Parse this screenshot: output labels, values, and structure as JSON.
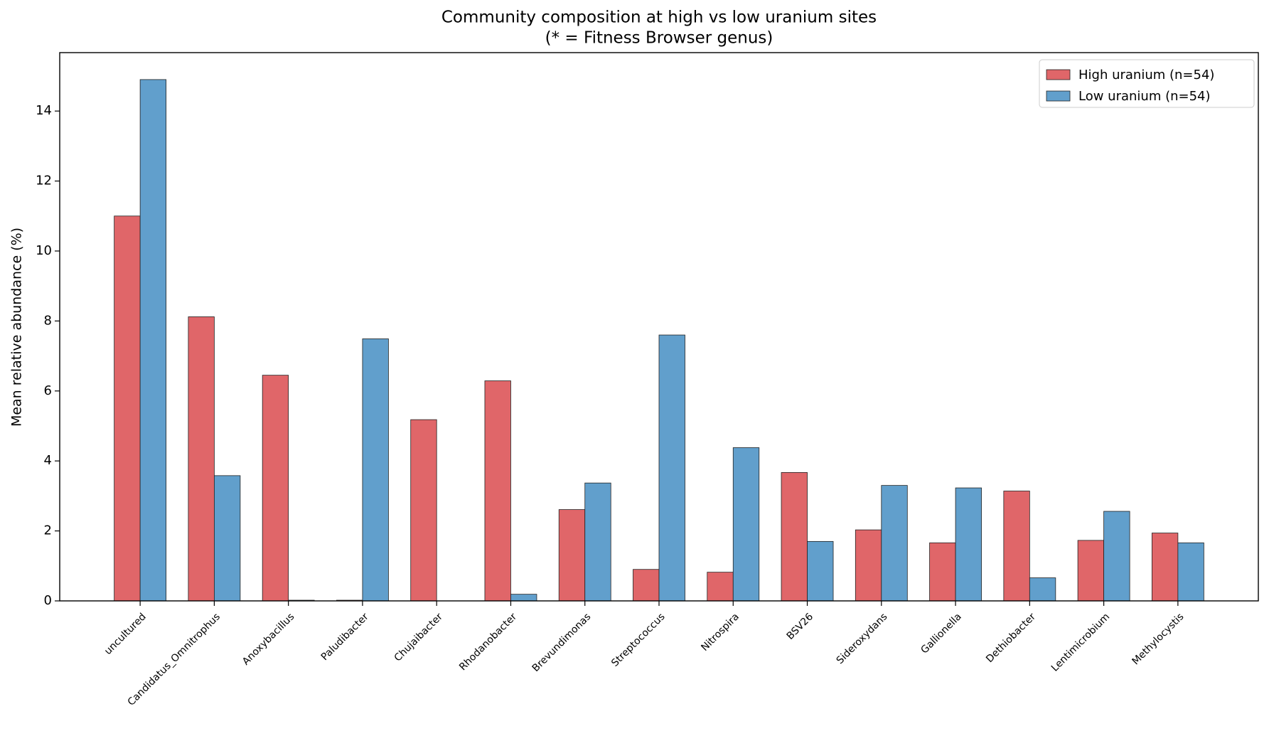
{
  "chart_data": {
    "type": "bar",
    "title": "Community composition at high vs low uranium sites",
    "subtitle": "(* = Fitness Browser genus)",
    "y_label": "Mean relative abundance (%)",
    "categories": [
      "uncultured",
      "Candidatus_Omnitrophus",
      "Anoxybacillus",
      "Paludibacter",
      "Chujaibacter",
      "Rhodanobacter",
      "Brevundimonas",
      "Streptococcus",
      "Nitrospira",
      "BSV26",
      "Sideroxydans",
      "Gallionella",
      "Dethiobacter",
      "Lentimicrobium",
      "Methylocystis"
    ],
    "series": [
      {
        "name": "High uranium (n=54)",
        "color": "#e06669",
        "values": [
          11.0,
          8.12,
          6.45,
          0.02,
          5.18,
          6.29,
          2.61,
          0.9,
          0.82,
          3.67,
          2.03,
          1.66,
          3.14,
          1.73,
          1.94
        ]
      },
      {
        "name": "Low uranium (n=54)",
        "color": "#619fcc",
        "values": [
          14.9,
          3.58,
          0.02,
          7.49,
          0.0,
          0.19,
          3.37,
          7.6,
          4.38,
          1.7,
          3.3,
          3.23,
          0.66,
          2.56,
          1.66
        ]
      }
    ],
    "ylim": [
      0,
      15.67
    ],
    "yticks": [
      0,
      2,
      4,
      6,
      8,
      10,
      12,
      14
    ],
    "legend": "upper right",
    "grid": false
  }
}
